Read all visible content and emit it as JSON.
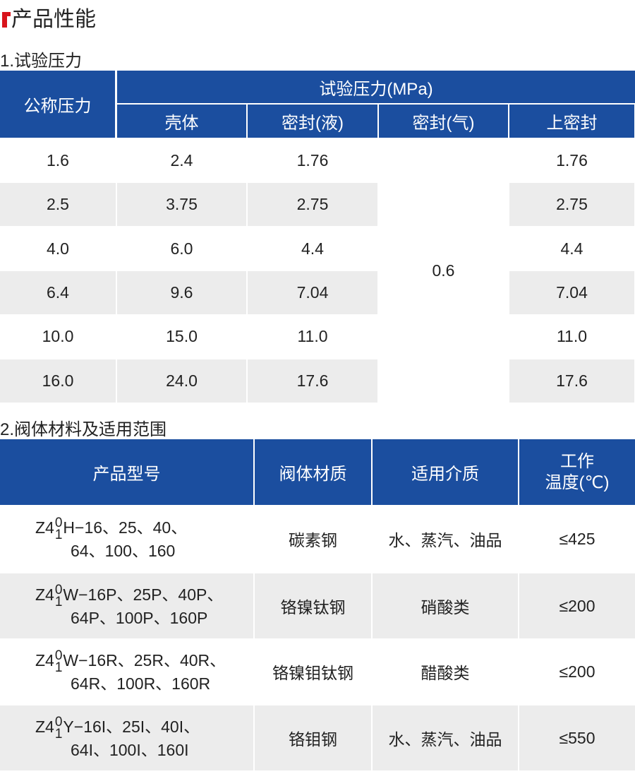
{
  "title": "产品性能",
  "section1": {
    "heading": "1.试验压力",
    "header": {
      "nominal": "公称压力",
      "test": "试验压力(MPa)",
      "columns": [
        "壳体",
        "密封(液)",
        "密封(气)",
        "上密封"
      ]
    },
    "rows": [
      [
        "1.6",
        "2.4",
        "1.76",
        "1.76"
      ],
      [
        "2.5",
        "3.75",
        "2.75",
        "2.75"
      ],
      [
        "4.0",
        "6.0",
        "4.4",
        "4.4"
      ],
      [
        "6.4",
        "9.6",
        "7.04",
        "7.04"
      ],
      [
        "10.0",
        "15.0",
        "11.0",
        "11.0"
      ],
      [
        "16.0",
        "24.0",
        "17.6",
        "17.6"
      ]
    ],
    "gas_seal": "0.6"
  },
  "section2": {
    "heading": "2.阀体材料及适用范围",
    "header": {
      "model": "产品型号",
      "material": "阀体材质",
      "medium": "适用介质",
      "temp_line1": "工作",
      "temp_line2": "温度(℃)"
    },
    "rows": [
      {
        "prefix": "Z4",
        "sup": "0",
        "sub": "1",
        "line1": "H−16、25、40、",
        "line2": "64、100、160",
        "material": "碳素钢",
        "medium": "水、蒸汽、油品",
        "temp": "≤425"
      },
      {
        "prefix": "Z4",
        "sup": "0",
        "sub": "1",
        "line1": "W−16P、25P、40P、",
        "line2": "64P、100P、160P",
        "material": "铬镍钛钢",
        "medium": "硝酸类",
        "temp": "≤200"
      },
      {
        "prefix": "Z4",
        "sup": "0",
        "sub": "1",
        "line1": "W−16R、25R、40R、",
        "line2": "64R、100R、160R",
        "material": "铬镍钼钛钢",
        "medium": "醋酸类",
        "temp": "≤200"
      },
      {
        "prefix": "Z4",
        "sup": "0",
        "sub": "1",
        "line1": "Y−16I、25I、40I、",
        "line2": "64I、100I、160I",
        "material": "铬钼钢",
        "medium": "水、蒸汽、油品",
        "temp": "≤550"
      }
    ]
  }
}
